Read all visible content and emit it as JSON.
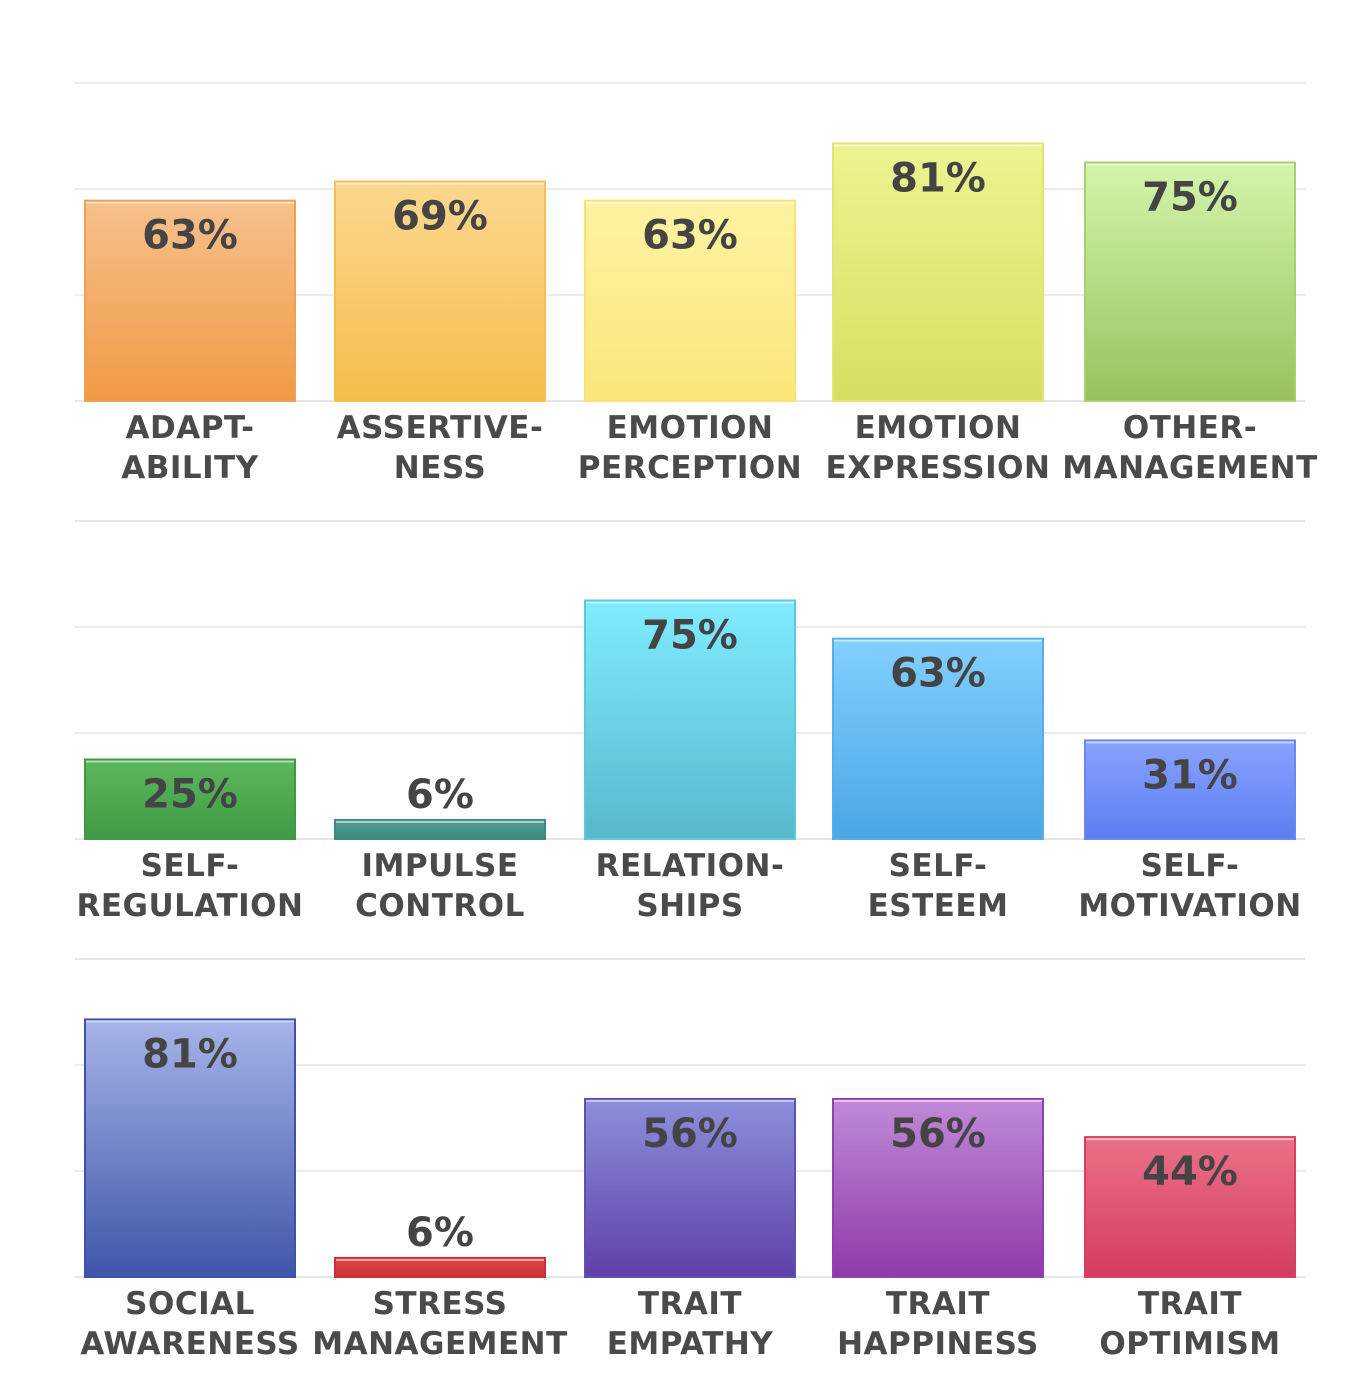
{
  "chart_data": [
    {
      "type": "bar",
      "categories": [
        [
          "ADAPT-",
          "ABILITY"
        ],
        [
          "ASSERTIVE-",
          "NESS"
        ],
        [
          "EMOTION",
          "PERCEPTION"
        ],
        [
          "EMOTION",
          "EXPRESSION"
        ],
        [
          "OTHER-",
          "MANAGEMENT"
        ]
      ],
      "values": [
        63,
        69,
        63,
        81,
        75
      ],
      "value_labels": [
        "63%",
        "69%",
        "63%",
        "81%",
        "75%"
      ],
      "ylim": [
        0,
        100
      ],
      "colors": [
        [
          "#f7c08c",
          "#f09a45"
        ],
        [
          "#fbd88f",
          "#f5bd4c"
        ],
        [
          "#fdf3a3",
          "#fce67a"
        ],
        [
          "#eef490",
          "#d8de60"
        ],
        [
          "#d3f5ab",
          "#98c25e"
        ]
      ],
      "edge_colors": [
        "#f0a055",
        "#f5c050",
        "#fce070",
        "#e0e670",
        "#a8d070"
      ]
    },
    {
      "type": "bar",
      "categories": [
        [
          "SELF-",
          "REGULATION"
        ],
        [
          "IMPULSE",
          "CONTROL"
        ],
        [
          "RELATION-",
          "SHIPS"
        ],
        [
          "SELF-",
          "ESTEEM"
        ],
        [
          "SELF-",
          "MOTIVATION"
        ]
      ],
      "values": [
        25,
        6,
        75,
        63,
        31
      ],
      "value_labels": [
        "25%",
        "6%",
        "75%",
        "63%",
        "31%"
      ],
      "ylim": [
        0,
        100
      ],
      "colors": [
        [
          "#5cb85c",
          "#3f9a45"
        ],
        [
          "#4ea095",
          "#3f8a80"
        ],
        [
          "#80ecff",
          "#58b8cc"
        ],
        [
          "#82d0ff",
          "#4aa6e6"
        ],
        [
          "#8aa2ff",
          "#5b7ef0"
        ]
      ],
      "edge_colors": [
        "#3f9a45",
        "#3f8a80",
        "#5cc8e0",
        "#5aaee8",
        "#6a88f0"
      ]
    },
    {
      "type": "bar",
      "categories": [
        [
          "SOCIAL",
          "AWARENESS"
        ],
        [
          "STRESS",
          "MANAGEMENT"
        ],
        [
          "TRAIT",
          "EMPATHY"
        ],
        [
          "TRAIT",
          "HAPPINESS"
        ],
        [
          "TRAIT",
          "OPTIMISM"
        ]
      ],
      "values": [
        81,
        6,
        56,
        56,
        44
      ],
      "value_labels": [
        "81%",
        "6%",
        "56%",
        "56%",
        "44%"
      ],
      "ylim": [
        0,
        100
      ],
      "colors": [
        [
          "#a6b4e8",
          "#3f55a8"
        ],
        [
          "#e04848",
          "#cc3030"
        ],
        [
          "#8c90dc",
          "#5f40a8"
        ],
        [
          "#c08ad8",
          "#8e3aa8"
        ],
        [
          "#ea7088",
          "#d43c60"
        ]
      ],
      "edge_colors": [
        "#4050b0",
        "#cc3030",
        "#6050b0",
        "#9040b0",
        "#d84060"
      ]
    }
  ]
}
